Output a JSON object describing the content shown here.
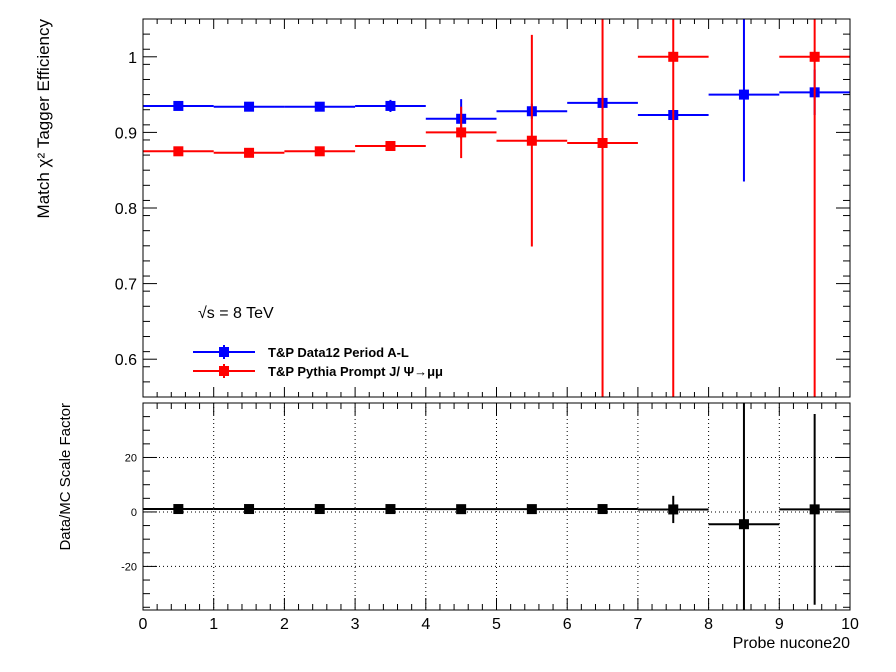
{
  "chart_data": [
    {
      "type": "scatter",
      "panel": "top",
      "ylabel": "Match χ² Tagger Efficiency",
      "xlim": [
        0,
        10
      ],
      "ylim": [
        0.55,
        1.05
      ],
      "yticks": [
        0.6,
        0.7,
        0.8,
        0.9,
        1
      ],
      "ytick_labels": [
        "0.6",
        "0.7",
        "0.8",
        "0.9",
        "1"
      ],
      "grid": false,
      "annotation": "√s = 8 TeV",
      "legend_position": "bottom-left",
      "series": [
        {
          "name": "T&P Data12 Period A-L",
          "color": "#0000ff",
          "x": [
            0.5,
            1.5,
            2.5,
            3.5,
            4.5,
            5.5,
            6.5,
            7.5,
            8.5,
            9.5
          ],
          "y": [
            0.935,
            0.934,
            0.934,
            0.935,
            0.918,
            0.928,
            0.939,
            0.923,
            0.95,
            0.953
          ],
          "yerr": [
            0.003,
            0.002,
            0.003,
            0.008,
            0.026,
            0.01,
            0.009,
            0.006,
            0.115,
            0.03
          ]
        },
        {
          "name": "T&P Pythia Prompt J/  Ψ→μμ",
          "color": "#ff0000",
          "x": [
            0.5,
            1.5,
            2.5,
            3.5,
            4.5,
            5.5,
            6.5,
            7.5,
            8.5,
            9.5
          ],
          "y": [
            0.875,
            0.873,
            0.875,
            0.882,
            0.9,
            0.889,
            0.886,
            1.0,
            null,
            1.0
          ],
          "yerr": [
            0.003,
            0.002,
            0.003,
            0.006,
            0.034,
            0.14,
            0.6,
            0.6,
            null,
            0.6
          ]
        }
      ]
    },
    {
      "type": "scatter",
      "panel": "bottom",
      "xlabel": "Probe nucone20",
      "ylabel": "Data/MC Scale Factor",
      "xlim": [
        0,
        10
      ],
      "ylim": [
        -36,
        40
      ],
      "xticks": [
        0,
        1,
        2,
        3,
        4,
        5,
        6,
        7,
        8,
        9,
        10
      ],
      "xtick_labels": [
        "0",
        "1",
        "2",
        "3",
        "4",
        "5",
        "6",
        "7",
        "8",
        "9",
        "10"
      ],
      "yticks": [
        -20,
        0,
        20
      ],
      "ytick_labels": [
        "-20",
        "0",
        "20"
      ],
      "grid": true,
      "series": [
        {
          "color": "#000000",
          "x": [
            0.5,
            1.5,
            2.5,
            3.5,
            4.5,
            5.5,
            6.5,
            7.5,
            8.5,
            9.5
          ],
          "y": [
            1.07,
            1.07,
            1.07,
            1.06,
            1.02,
            1.04,
            1.06,
            0.92,
            -4.5,
            0.95
          ],
          "yerr": [
            0.01,
            0.01,
            0.01,
            0.01,
            0.05,
            0.15,
            0.5,
            5.0,
            45,
            35
          ]
        }
      ]
    }
  ]
}
